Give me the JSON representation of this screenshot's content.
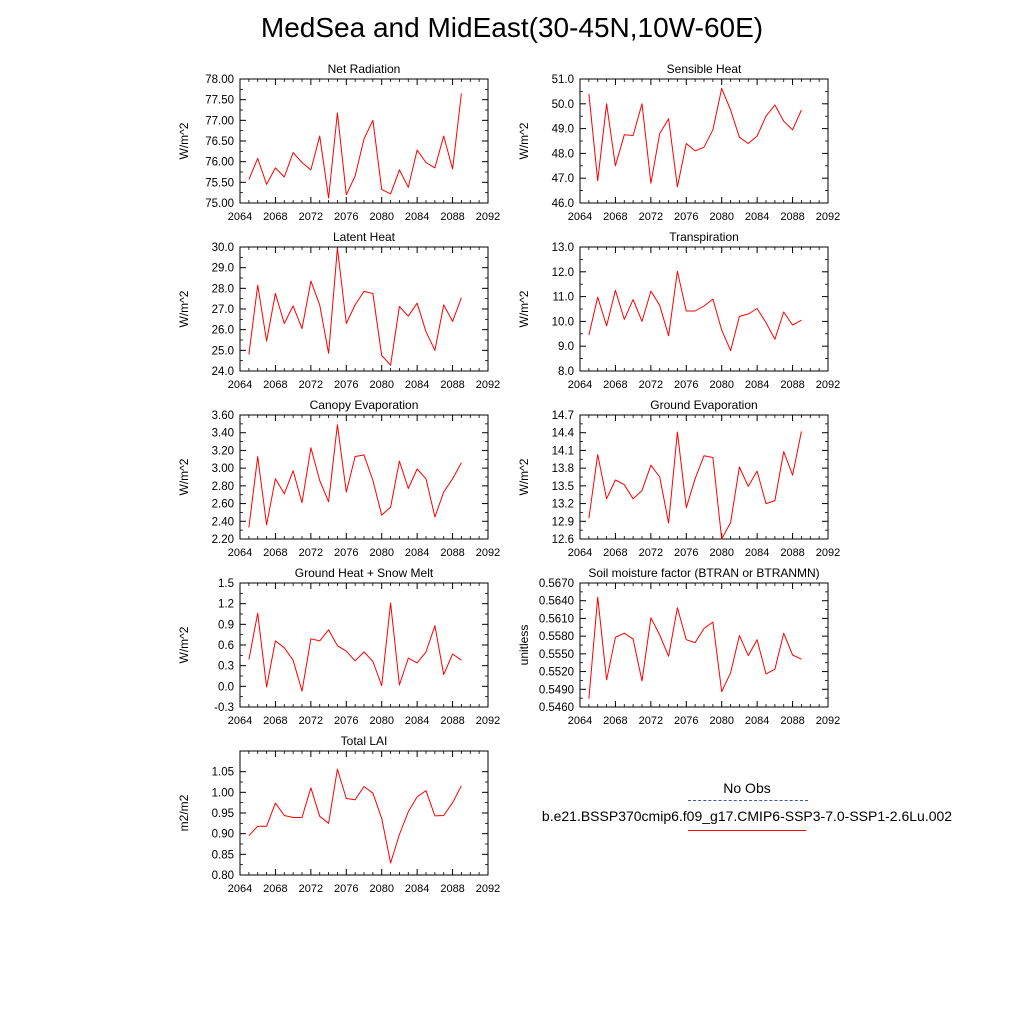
{
  "title": "MedSea and MidEast(30-45N,10W-60E)",
  "legend": {
    "obs_label": "No Obs",
    "case_label": "b.e21.BSSP370cmip6.f09_g17.CMIP6-SSP3-7.0-SSP1-2.6Lu.002",
    "obs_color": "#4455aa",
    "case_color": "#ff0000"
  },
  "chart_data": [
    {
      "type": "line",
      "title": "Net Radiation",
      "ylabel": "W/m^2",
      "xlim": [
        2064,
        2092
      ],
      "xticks": [
        2064,
        2068,
        2072,
        2076,
        2080,
        2084,
        2088,
        2092
      ],
      "ylim": [
        75.0,
        78.0
      ],
      "yticks": [
        "75.00",
        "75.50",
        "76.00",
        "76.50",
        "77.00",
        "77.50",
        "78.00"
      ],
      "x": [
        2065,
        2066,
        2067,
        2068,
        2069,
        2070,
        2071,
        2072,
        2073,
        2074,
        2075,
        2076,
        2077,
        2078,
        2079,
        2080,
        2081,
        2082,
        2083,
        2084,
        2085,
        2086,
        2087,
        2088,
        2089
      ],
      "y": [
        75.57,
        76.08,
        75.45,
        75.85,
        75.63,
        76.22,
        75.98,
        75.8,
        76.62,
        75.12,
        77.18,
        75.2,
        75.65,
        76.55,
        77.0,
        75.33,
        75.22,
        75.8,
        75.38,
        76.28,
        75.98,
        75.85,
        76.62,
        75.82,
        77.65
      ]
    },
    {
      "type": "line",
      "title": "Sensible Heat",
      "ylabel": "W/m^2",
      "xlim": [
        2064,
        2092
      ],
      "xticks": [
        2064,
        2068,
        2072,
        2076,
        2080,
        2084,
        2088,
        2092
      ],
      "ylim": [
        46.0,
        51.0
      ],
      "yticks": [
        "46.0",
        "47.0",
        "48.0",
        "49.0",
        "50.0",
        "51.0"
      ],
      "x": [
        2065,
        2066,
        2067,
        2068,
        2069,
        2070,
        2071,
        2072,
        2073,
        2074,
        2075,
        2076,
        2077,
        2078,
        2079,
        2080,
        2081,
        2082,
        2083,
        2084,
        2085,
        2086,
        2087,
        2088,
        2089
      ],
      "y": [
        50.4,
        46.9,
        50.0,
        47.5,
        48.75,
        48.72,
        50.0,
        46.8,
        48.8,
        49.4,
        46.65,
        48.4,
        48.1,
        48.25,
        48.95,
        50.62,
        49.75,
        48.65,
        48.4,
        48.7,
        49.5,
        49.95,
        49.3,
        48.95,
        49.75
      ]
    },
    {
      "type": "line",
      "title": "Latent Heat",
      "ylabel": "W/m^2",
      "xlim": [
        2064,
        2092
      ],
      "xticks": [
        2064,
        2068,
        2072,
        2076,
        2080,
        2084,
        2088,
        2092
      ],
      "ylim": [
        24.0,
        30.0
      ],
      "yticks": [
        "24.0",
        "25.0",
        "26.0",
        "27.0",
        "28.0",
        "29.0",
        "30.0"
      ],
      "x": [
        2065,
        2066,
        2067,
        2068,
        2069,
        2070,
        2071,
        2072,
        2073,
        2074,
        2075,
        2076,
        2077,
        2078,
        2079,
        2080,
        2081,
        2082,
        2083,
        2084,
        2085,
        2086,
        2087,
        2088,
        2089
      ],
      "y": [
        24.8,
        28.15,
        25.45,
        27.75,
        26.3,
        27.15,
        26.05,
        28.35,
        27.2,
        24.85,
        29.95,
        26.3,
        27.2,
        27.85,
        27.75,
        24.75,
        24.28,
        27.12,
        26.65,
        27.28,
        25.9,
        25.0,
        27.2,
        26.4,
        27.55
      ]
    },
    {
      "type": "line",
      "title": "Transpiration",
      "ylabel": "W/m^2",
      "xlim": [
        2064,
        2092
      ],
      "xticks": [
        2064,
        2068,
        2072,
        2076,
        2080,
        2084,
        2088,
        2092
      ],
      "ylim": [
        8.0,
        13.0
      ],
      "yticks": [
        "8.0",
        "9.0",
        "10.0",
        "11.0",
        "12.0",
        "13.0"
      ],
      "x": [
        2065,
        2066,
        2067,
        2068,
        2069,
        2070,
        2071,
        2072,
        2073,
        2074,
        2075,
        2076,
        2077,
        2078,
        2079,
        2080,
        2081,
        2082,
        2083,
        2084,
        2085,
        2086,
        2087,
        2088,
        2089
      ],
      "y": [
        9.45,
        10.98,
        9.82,
        11.25,
        10.08,
        10.88,
        10.0,
        11.22,
        10.65,
        9.42,
        12.02,
        10.42,
        10.42,
        10.62,
        10.9,
        9.65,
        8.82,
        10.2,
        10.3,
        10.52,
        9.95,
        9.28,
        10.38,
        9.85,
        10.05
      ]
    },
    {
      "type": "line",
      "title": "Canopy Evaporation",
      "ylabel": "W/m^2",
      "xlim": [
        2064,
        2092
      ],
      "xticks": [
        2064,
        2068,
        2072,
        2076,
        2080,
        2084,
        2088,
        2092
      ],
      "ylim": [
        2.2,
        3.6
      ],
      "yticks": [
        "2.20",
        "2.40",
        "2.60",
        "2.80",
        "3.00",
        "3.20",
        "3.40",
        "3.60"
      ],
      "x": [
        2065,
        2066,
        2067,
        2068,
        2069,
        2070,
        2071,
        2072,
        2073,
        2074,
        2075,
        2076,
        2077,
        2078,
        2079,
        2080,
        2081,
        2082,
        2083,
        2084,
        2085,
        2086,
        2087,
        2088,
        2089
      ],
      "y": [
        2.33,
        3.13,
        2.36,
        2.88,
        2.71,
        2.97,
        2.61,
        3.23,
        2.86,
        2.62,
        3.49,
        2.73,
        3.13,
        3.15,
        2.86,
        2.47,
        2.56,
        3.08,
        2.77,
        2.99,
        2.88,
        2.45,
        2.73,
        2.88,
        3.06
      ]
    },
    {
      "type": "line",
      "title": "Ground Evaporation",
      "ylabel": "W/m^2",
      "xlim": [
        2064,
        2092
      ],
      "xticks": [
        2064,
        2068,
        2072,
        2076,
        2080,
        2084,
        2088,
        2092
      ],
      "ylim": [
        12.6,
        14.7
      ],
      "yticks": [
        "12.6",
        "12.9",
        "13.2",
        "13.5",
        "13.8",
        "14.1",
        "14.4",
        "14.7"
      ],
      "x": [
        2065,
        2066,
        2067,
        2068,
        2069,
        2070,
        2071,
        2072,
        2073,
        2074,
        2075,
        2076,
        2077,
        2078,
        2079,
        2080,
        2081,
        2082,
        2083,
        2084,
        2085,
        2086,
        2087,
        2088,
        2089
      ],
      "y": [
        12.95,
        14.03,
        13.28,
        13.6,
        13.52,
        13.28,
        13.42,
        13.85,
        13.65,
        12.87,
        14.41,
        13.13,
        13.62,
        14.01,
        13.98,
        12.6,
        12.88,
        13.82,
        13.49,
        13.75,
        13.2,
        13.25,
        14.08,
        13.68,
        14.42
      ]
    },
    {
      "type": "line",
      "title": "Ground Heat + Snow Melt",
      "ylabel": "W/m^2",
      "xlim": [
        2064,
        2092
      ],
      "xticks": [
        2064,
        2068,
        2072,
        2076,
        2080,
        2084,
        2088,
        2092
      ],
      "ylim": [
        -0.3,
        1.5
      ],
      "yticks": [
        "-0.3",
        "0.0",
        "0.3",
        "0.6",
        "0.9",
        "1.2",
        "1.5"
      ],
      "x": [
        2065,
        2066,
        2067,
        2068,
        2069,
        2070,
        2071,
        2072,
        2073,
        2074,
        2075,
        2076,
        2077,
        2078,
        2079,
        2080,
        2081,
        2082,
        2083,
        2084,
        2085,
        2086,
        2087,
        2088,
        2089
      ],
      "y": [
        0.39,
        1.06,
        -0.01,
        0.66,
        0.56,
        0.38,
        -0.07,
        0.69,
        0.66,
        0.82,
        0.59,
        0.51,
        0.37,
        0.5,
        0.36,
        0.01,
        1.21,
        0.02,
        0.41,
        0.34,
        0.5,
        0.88,
        0.17,
        0.47,
        0.38
      ]
    },
    {
      "type": "line",
      "title": "Soil moisture factor (BTRAN or BTRANMN)",
      "ylabel": "unitless",
      "xlim": [
        2064,
        2092
      ],
      "xticks": [
        2064,
        2068,
        2072,
        2076,
        2080,
        2084,
        2088,
        2092
      ],
      "ylim": [
        0.546,
        0.567
      ],
      "yticks": [
        "0.5460",
        "0.5490",
        "0.5520",
        "0.5550",
        "0.5580",
        "0.5610",
        "0.5640",
        "0.5670"
      ],
      "x": [
        2065,
        2066,
        2067,
        2068,
        2069,
        2070,
        2071,
        2072,
        2073,
        2074,
        2075,
        2076,
        2077,
        2078,
        2079,
        2080,
        2081,
        2082,
        2083,
        2084,
        2085,
        2086,
        2087,
        2088,
        2089
      ],
      "y": [
        0.5474,
        0.5646,
        0.5506,
        0.5578,
        0.5585,
        0.5575,
        0.5504,
        0.5611,
        0.5582,
        0.5546,
        0.5628,
        0.5574,
        0.5569,
        0.5593,
        0.5604,
        0.5486,
        0.5518,
        0.5581,
        0.5547,
        0.5574,
        0.5516,
        0.5524,
        0.5585,
        0.5548,
        0.5541
      ]
    },
    {
      "type": "line",
      "title": "Total LAI",
      "ylabel": "m2/m2",
      "xlim": [
        2064,
        2092
      ],
      "xticks": [
        2064,
        2068,
        2072,
        2076,
        2080,
        2084,
        2088,
        2092
      ],
      "ylim": [
        0.8,
        1.1
      ],
      "yticks": [
        "0.80",
        "0.85",
        "0.90",
        "0.95",
        "1.00",
        "1.05"
      ],
      "x": [
        2065,
        2066,
        2067,
        2068,
        2069,
        2070,
        2071,
        2072,
        2073,
        2074,
        2075,
        2076,
        2077,
        2078,
        2079,
        2080,
        2081,
        2082,
        2083,
        2084,
        2085,
        2086,
        2087,
        2088,
        2089
      ],
      "y": [
        0.895,
        0.918,
        0.918,
        0.974,
        0.944,
        0.939,
        0.939,
        1.011,
        0.942,
        0.925,
        1.056,
        0.985,
        0.982,
        1.014,
        0.998,
        0.937,
        0.829,
        0.898,
        0.953,
        0.989,
        1.004,
        0.943,
        0.944,
        0.975,
        1.016
      ]
    }
  ]
}
